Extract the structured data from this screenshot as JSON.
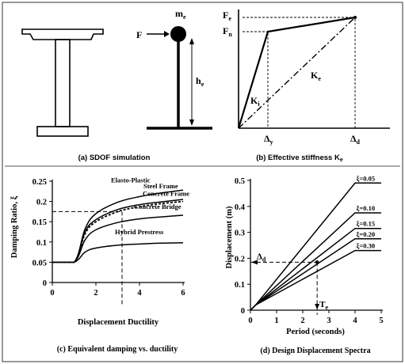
{
  "colors": {
    "ink": "#000000",
    "frame": "#555555",
    "background": "#ffffff"
  },
  "panel_a": {
    "caption": "(a) SDOF simulation",
    "mass_label_main": "m",
    "mass_label_sub": "e",
    "force_label": "F",
    "height_label_main": "h",
    "height_label_sub": "e"
  },
  "panel_b": {
    "caption_main": "(b) Effective stiffness K",
    "caption_sub": "e",
    "fe_main": "F",
    "fe_sub": "e",
    "fn_main": "F",
    "fn_sub": "n",
    "ke_main": "K",
    "ke_sub": "e",
    "ki_main": "K",
    "ki_sub": "i",
    "dy_main": "Δ",
    "dy_sub": "y",
    "dd_main": "Δ",
    "dd_sub": "d"
  },
  "chart_data": [
    {
      "type": "line",
      "title": "(c) Equivalent damping vs. ductility",
      "xlabel": "Displacement Ductility",
      "ylabel": "Damping Ratio, ξ",
      "xlim": [
        0,
        6
      ],
      "ylim": [
        0,
        0.25
      ],
      "xticks": [
        "0",
        "2",
        "4",
        "6"
      ],
      "yticks": [
        "0",
        "0.05",
        "0.1",
        "0.15",
        "0.2",
        "0.25"
      ],
      "series": [
        {
          "name": "Elasto-Plastic",
          "x": [
            0,
            1,
            1.5,
            2,
            3,
            4,
            5,
            6
          ],
          "y": [
            0.05,
            0.05,
            0.132,
            0.17,
            0.198,
            0.212,
            0.221,
            0.228
          ]
        },
        {
          "name": "Steel Frame",
          "x": [
            0,
            1,
            1.5,
            2,
            3,
            4,
            5,
            6
          ],
          "y": [
            0.05,
            0.05,
            0.125,
            0.155,
            0.18,
            0.192,
            0.199,
            0.205
          ]
        },
        {
          "name": "Concrete Frame",
          "x": [
            0,
            1,
            1.5,
            2,
            3,
            4,
            5,
            6
          ],
          "y": [
            0.05,
            0.05,
            0.12,
            0.15,
            0.175,
            0.187,
            0.195,
            0.2
          ]
        },
        {
          "name": "Concrete Bridge",
          "x": [
            0,
            1,
            1.5,
            2,
            3,
            4,
            5,
            6
          ],
          "y": [
            0.05,
            0.05,
            0.105,
            0.13,
            0.148,
            0.157,
            0.162,
            0.166
          ]
        },
        {
          "name": "Hybrid Prestress",
          "x": [
            0,
            1,
            1.5,
            2,
            3,
            4,
            5,
            6
          ],
          "y": [
            0.05,
            0.05,
            0.075,
            0.085,
            0.092,
            0.095,
            0.097,
            0.098
          ]
        }
      ],
      "annotation": {
        "ductility": 3.2,
        "damping": 0.175
      }
    },
    {
      "type": "line",
      "title": "(d) Design Displacement Spectra",
      "xlabel": "Period (seconds)",
      "ylabel": "Displacement (m)",
      "xlim": [
        0,
        5
      ],
      "ylim": [
        0,
        0.5
      ],
      "xticks": [
        "0",
        "1",
        "2",
        "3",
        "4",
        "5"
      ],
      "yticks": [
        "0",
        "0.1",
        "0.2",
        "0.3",
        "0.4",
        "0.5"
      ],
      "series": [
        {
          "name": "ξ=0.05",
          "x": [
            0,
            0.2,
            4,
            5
          ],
          "y": [
            0,
            0.02,
            0.49,
            0.49
          ]
        },
        {
          "name": "ξ=0.10",
          "x": [
            0,
            0.2,
            4,
            5
          ],
          "y": [
            0,
            0.02,
            0.375,
            0.375
          ]
        },
        {
          "name": "ξ=0.15",
          "x": [
            0,
            0.2,
            4,
            5
          ],
          "y": [
            0,
            0.02,
            0.315,
            0.315
          ]
        },
        {
          "name": "ξ=0.20",
          "x": [
            0,
            0.2,
            4,
            5
          ],
          "y": [
            0,
            0.02,
            0.275,
            0.275
          ]
        },
        {
          "name": "ξ=0.30",
          "x": [
            0,
            0.2,
            4,
            5
          ],
          "y": [
            0,
            0.02,
            0.23,
            0.23
          ]
        }
      ],
      "annotation": {
        "period": 2.55,
        "displacement": 0.185,
        "d_label_main": "Δ",
        "d_label_sub": "d",
        "t_label_main": "T",
        "t_label_sub": "e"
      }
    }
  ]
}
